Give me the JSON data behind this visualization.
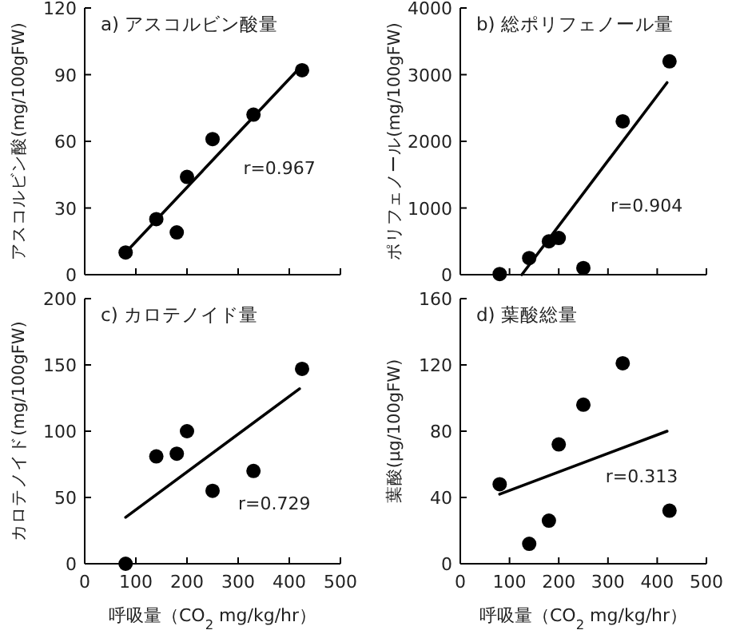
{
  "chart_data": [
    {
      "type": "scatter",
      "title": "a) アスコルビン酸量",
      "ylabel": "アスコルビン酸(mg/100gFW)",
      "xlim": [
        0,
        500
      ],
      "xticks": [
        0,
        100,
        200,
        300,
        400,
        500
      ],
      "ylim": [
        0,
        120
      ],
      "yticks": [
        0,
        30,
        60,
        90,
        120
      ],
      "tick_labels": "y",
      "series": [
        {
          "type": "scatter",
          "color": "#000000",
          "x": [
            80,
            140,
            180,
            200,
            250,
            330,
            425
          ],
          "values": [
            10,
            25,
            19,
            44,
            61,
            72,
            92
          ]
        },
        {
          "type": "line",
          "color": "#000000",
          "x": [
            80,
            420
          ],
          "values": [
            10,
            93
          ]
        }
      ],
      "annotations": [
        "r=0.967"
      ]
    },
    {
      "type": "scatter",
      "title": "b) 総ポリフェノール量",
      "ylabel": "ポリフェノール(mg/100gFW)",
      "xlim": [
        0,
        500
      ],
      "xticks": [
        0,
        100,
        200,
        300,
        400,
        500
      ],
      "ylim": [
        0,
        4000
      ],
      "yticks": [
        0,
        1000,
        2000,
        3000,
        4000
      ],
      "tick_labels": "y",
      "series": [
        {
          "type": "scatter",
          "color": "#000000",
          "x": [
            80,
            140,
            180,
            200,
            250,
            330,
            425
          ],
          "values": [
            10,
            250,
            500,
            550,
            100,
            2300,
            3200
          ]
        },
        {
          "type": "line",
          "color": "#000000",
          "x": [
            125,
            420
          ],
          "values": [
            0,
            2880
          ]
        }
      ],
      "annotations": [
        "r=0.904"
      ]
    },
    {
      "type": "scatter",
      "title": "c) カロテノイド量",
      "xlabel": "呼吸量（CO$_{2}$ mg/kg/hr）",
      "ylabel": "カロテノイド(mg/100gFW)",
      "xlim": [
        0,
        500
      ],
      "xticks": [
        0,
        100,
        200,
        300,
        400,
        500
      ],
      "ylim": [
        0,
        200
      ],
      "yticks": [
        0,
        50,
        100,
        150,
        200
      ],
      "series": [
        {
          "type": "scatter",
          "color": "#000000",
          "x": [
            80,
            140,
            180,
            200,
            250,
            330,
            425
          ],
          "values": [
            0,
            81,
            83,
            100,
            55,
            70,
            147
          ]
        },
        {
          "type": "line",
          "color": "#000000",
          "x": [
            80,
            420
          ],
          "values": [
            35,
            132
          ]
        }
      ],
      "annotations": [
        "r=0.729"
      ]
    },
    {
      "type": "scatter",
      "title": "d) 葉酸総量",
      "xlabel": "呼吸量（CO$_{2}$ mg/kg/hr）",
      "ylabel": "葉酸(μg/100gFW)",
      "xlim": [
        0,
        500
      ],
      "xticks": [
        0,
        100,
        200,
        300,
        400,
        500
      ],
      "ylim": [
        0,
        160
      ],
      "yticks": [
        0,
        40,
        80,
        120,
        160
      ],
      "series": [
        {
          "type": "scatter",
          "color": "#000000",
          "x": [
            80,
            140,
            180,
            200,
            250,
            330,
            425
          ],
          "values": [
            48,
            12,
            26,
            72,
            96,
            121,
            32
          ]
        },
        {
          "type": "line",
          "color": "#000000",
          "x": [
            80,
            420
          ],
          "values": [
            42,
            80
          ]
        }
      ],
      "annotations": [
        "r=0.313"
      ]
    }
  ]
}
